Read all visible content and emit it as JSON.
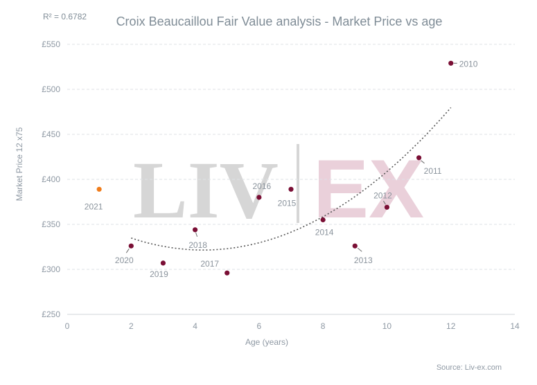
{
  "chart_data": {
    "type": "scatter",
    "title": "Croix Beaucaillou Fair Value analysis - Market Price vs age",
    "annotation": "R² = 0.6782",
    "xlabel": "Age (years)",
    "ylabel": "Market Price 12 x75",
    "xlim": [
      0,
      14
    ],
    "ylim": [
      250,
      560
    ],
    "x_ticks": [
      0,
      2,
      4,
      6,
      8,
      10,
      12,
      14
    ],
    "y_ticks": [
      250,
      300,
      350,
      400,
      450,
      500,
      550
    ],
    "y_tick_prefix": "£",
    "grid": "horizontal-dashed",
    "trendline": {
      "type": "polynomial",
      "order": 2,
      "x_range": [
        2,
        12
      ],
      "color": "#555555"
    },
    "series": [
      {
        "color": "#7a0f35",
        "points": [
          {
            "x": 2,
            "y": 326,
            "label": "2020"
          },
          {
            "x": 3,
            "y": 307,
            "label": "2019"
          },
          {
            "x": 4,
            "y": 344,
            "label": "2018"
          },
          {
            "x": 5,
            "y": 296,
            "label": "2017"
          },
          {
            "x": 6,
            "y": 380,
            "label": "2016"
          },
          {
            "x": 7,
            "y": 389,
            "label": "2015"
          },
          {
            "x": 8,
            "y": 355,
            "label": "2014"
          },
          {
            "x": 9,
            "y": 326,
            "label": "2013"
          },
          {
            "x": 10,
            "y": 369,
            "label": "2012"
          },
          {
            "x": 11,
            "y": 424,
            "label": "2011"
          },
          {
            "x": 12,
            "y": 529,
            "label": "2010"
          }
        ]
      },
      {
        "color": "#f07c1a",
        "points": [
          {
            "x": 1,
            "y": 389,
            "label": "2021"
          }
        ]
      }
    ],
    "watermark": {
      "left": "LIV",
      "right": "EX"
    },
    "source": "Source: Liv-ex.com"
  }
}
